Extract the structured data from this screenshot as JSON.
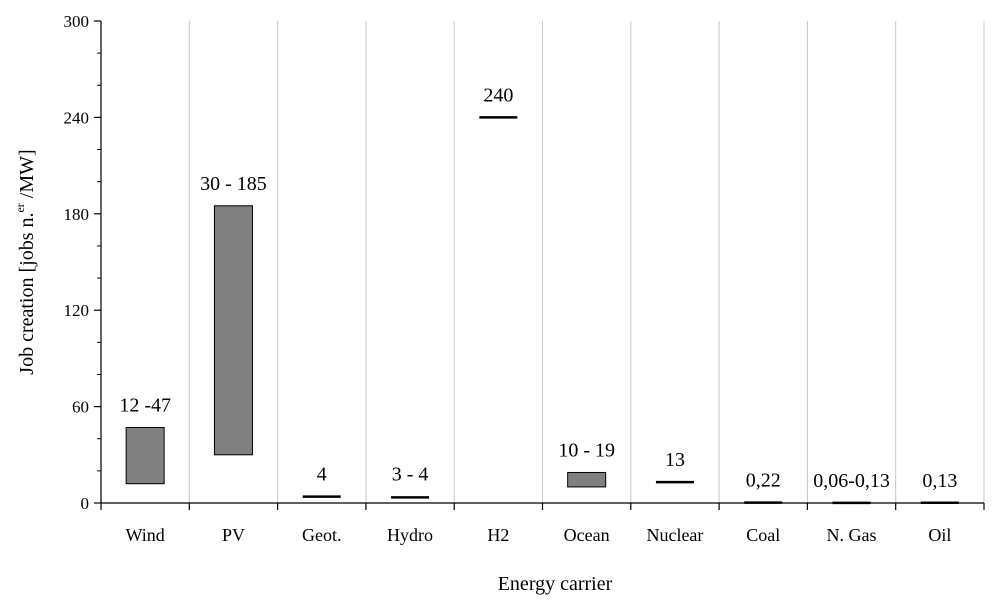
{
  "chart_data": {
    "type": "bar",
    "subtype": "floating-range",
    "xlabel": "Energy carrier",
    "ylabel_parts": {
      "prefix": "Job creation  [jobs n.",
      "superscript": "er",
      "suffix": " /MW]"
    },
    "ylim": [
      0,
      300
    ],
    "yticks": [
      "0",
      "60",
      "120",
      "180",
      "240",
      "300"
    ],
    "ytick_values": [
      0,
      60,
      120,
      180,
      240,
      300
    ],
    "grid": {
      "vertical_category_lines": true,
      "horizontal": false
    },
    "bar_color": "#808080",
    "categories": [
      "Wind",
      "PV",
      "Geot.",
      "Hydro",
      "H2",
      "Ocean",
      "Nuclear",
      "Coal",
      "N. Gas",
      "Oil"
    ],
    "ranges": [
      {
        "category": "Wind",
        "min": 12,
        "max": 47,
        "label": "12 -47"
      },
      {
        "category": "PV",
        "min": 30,
        "max": 185,
        "label": "30 - 185"
      },
      {
        "category": "Geot.",
        "min": 4,
        "max": 4,
        "label": "4"
      },
      {
        "category": "Hydro",
        "min": 3,
        "max": 4,
        "label": "3 - 4"
      },
      {
        "category": "H2",
        "min": 240,
        "max": 240,
        "label": "240"
      },
      {
        "category": "Ocean",
        "min": 10,
        "max": 19,
        "label": "10 - 19"
      },
      {
        "category": "Nuclear",
        "min": 13,
        "max": 13,
        "label": "13"
      },
      {
        "category": "Coal",
        "min": 0.22,
        "max": 0.22,
        "label": "0,22"
      },
      {
        "category": "N. Gas",
        "min": 0.06,
        "max": 0.13,
        "label": "0,06-0,13"
      },
      {
        "category": "Oil",
        "min": 0.13,
        "max": 0.13,
        "label": "0,13"
      }
    ]
  }
}
